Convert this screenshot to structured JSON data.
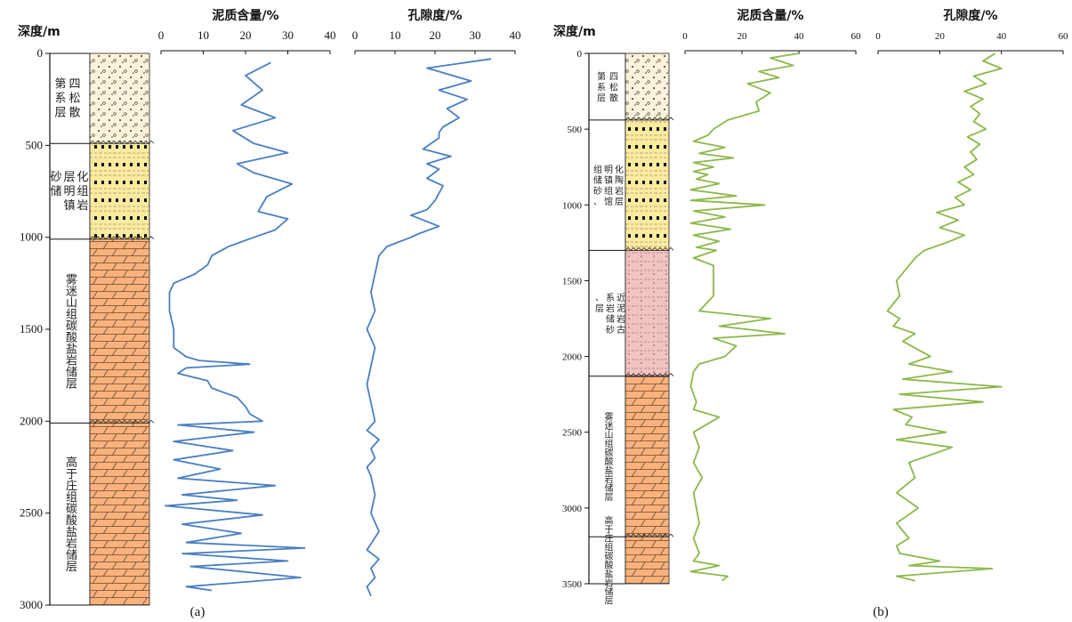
{
  "chart_data": [
    {
      "panel": "a",
      "type": "line",
      "caption": "(a)",
      "depth_axis": {
        "label": "深度/m",
        "ticks": [
          "0",
          "500",
          "1000",
          "1500",
          "2000",
          "2500",
          "3000"
        ],
        "range": [
          0,
          3000
        ]
      },
      "formations": [
        {
          "name": "第四系松散层",
          "label_lines": [
            "四",
            "松",
            "散",
            "第",
            "系",
            "层"
          ],
          "top": 0,
          "bottom": 490,
          "lithology": "sand-gravel",
          "color": "#fdf3db"
        },
        {
          "name": "明化镇组砂岩储层",
          "label_lines": [
            "化",
            "组",
            "岩",
            "层",
            "明",
            "镇",
            "砂",
            "储"
          ],
          "top": 490,
          "bottom": 1010,
          "lithology": "sandstone",
          "color": "#fcea9e"
        },
        {
          "name": "雾迷山组碳酸盐岩储层",
          "top": 1010,
          "bottom": 2010,
          "lithology": "carbonate",
          "color": "#f9b27d"
        },
        {
          "name": "高于庄组碳酸盐岩储层",
          "top": 2010,
          "bottom": 3000,
          "lithology": "carbonate",
          "color": "#f9b27d"
        }
      ],
      "series": [
        {
          "name": "泥质含量/%",
          "color": "#4a7fc1",
          "xlim": [
            0,
            40
          ],
          "xticks": [
            "0",
            "10",
            "20",
            "30",
            "40"
          ],
          "depth": [
            50,
            120,
            200,
            280,
            350,
            420,
            490,
            540,
            600,
            650,
            710,
            780,
            820,
            860,
            900,
            960,
            1000,
            1050,
            1100,
            1150,
            1200,
            1250,
            1300,
            1400,
            1500,
            1600,
            1650,
            1670,
            1690,
            1710,
            1740,
            1780,
            1820,
            1870,
            1920,
            1960,
            2000,
            2020,
            2060,
            2110,
            2160,
            2210,
            2260,
            2310,
            2350,
            2400,
            2430,
            2460,
            2510,
            2560,
            2610,
            2660,
            2690,
            2720,
            2760,
            2790,
            2850,
            2900,
            2920
          ],
          "values": [
            26,
            20,
            24,
            19,
            27,
            17,
            22,
            30,
            18,
            22,
            31,
            25,
            24,
            23,
            30,
            27,
            22,
            16,
            12,
            11,
            8,
            3,
            2,
            2,
            3,
            3,
            6,
            9,
            21,
            6,
            4,
            11,
            12,
            18,
            20,
            21,
            24,
            4,
            22,
            3,
            17,
            3,
            14,
            4,
            27,
            5,
            18,
            1,
            24,
            5,
            19,
            6,
            34,
            5,
            30,
            7,
            33,
            6,
            12
          ]
        },
        {
          "name": "孔隙度/%",
          "color": "#4a7fc1",
          "xlim": [
            0,
            40
          ],
          "xticks": [
            "0",
            "10",
            "20",
            "30",
            "40"
          ],
          "depth": [
            30,
            80,
            150,
            200,
            250,
            300,
            350,
            400,
            430,
            460,
            520,
            560,
            600,
            630,
            680,
            720,
            800,
            850,
            880,
            940,
            980,
            1000,
            1050,
            1100,
            1200,
            1300,
            1400,
            1500,
            1600,
            1700,
            1800,
            1900,
            2000,
            2050,
            2100,
            2150,
            2200,
            2250,
            2300,
            2400,
            2500,
            2600,
            2700,
            2750,
            2800,
            2850,
            2900,
            2950
          ],
          "values": [
            34,
            18,
            29,
            21,
            28,
            23,
            26,
            22,
            21,
            21,
            17,
            24,
            18,
            21,
            18,
            22,
            20,
            18,
            14,
            21,
            16,
            14,
            8,
            6,
            5,
            4,
            5,
            3,
            5,
            4,
            3,
            4,
            5,
            3,
            6,
            4,
            5,
            3,
            4,
            5,
            4,
            6,
            3,
            6,
            4,
            5,
            3,
            4
          ]
        }
      ]
    },
    {
      "panel": "b",
      "type": "line",
      "caption": "(b)",
      "depth_axis": {
        "label": "深度/m",
        "ticks": [
          "0",
          "500",
          "1000",
          "1500",
          "2000",
          "2500",
          "3000",
          "3500"
        ],
        "range": [
          0,
          3500
        ]
      },
      "formations": [
        {
          "name": "第四系松散层",
          "label_lines": [
            "四",
            "松",
            "散",
            "第",
            "系",
            "层"
          ],
          "top": 0,
          "bottom": 440,
          "lithology": "sand-gravel",
          "color": "#fdf3db"
        },
        {
          "name": "明化镇组、馆陶组砂岩储层",
          "label_lines": [
            "化",
            "陶",
            "岩",
            "层",
            "明",
            "镇",
            "组",
            "馆",
            "组",
            "储",
            "砂",
            "、"
          ],
          "top": 440,
          "bottom": 1300,
          "lithology": "sandstone",
          "color": "#fcea9e"
        },
        {
          "name": "古近系泥岩、砂岩储层",
          "label_lines": [
            "近",
            "泥",
            "岩",
            "古",
            "系",
            "岩",
            "储",
            "砂",
            "、",
            "层"
          ],
          "top": 1300,
          "bottom": 2130,
          "lithology": "mudstone-sandstone",
          "color": "#f2c3c3"
        },
        {
          "name": "雾迷山组碳酸盐岩储层",
          "top": 2130,
          "bottom": 3190,
          "lithology": "carbonate",
          "color": "#f9b27d"
        },
        {
          "name": "高于庄组碳酸盐岩储层",
          "top": 3190,
          "bottom": 3500,
          "lithology": "carbonate",
          "color": "#f9b27d"
        }
      ],
      "series": [
        {
          "name": "泥质含量/%",
          "color": "#8cb84a",
          "xlim": [
            0,
            60
          ],
          "xticks": [
            "0",
            "20",
            "40",
            "60"
          ],
          "depth": [
            0,
            30,
            80,
            120,
            160,
            200,
            260,
            320,
            380,
            440,
            500,
            540,
            580,
            620,
            660,
            690,
            720,
            750,
            780,
            800,
            830,
            860,
            900,
            940,
            970,
            1000,
            1040,
            1080,
            1120,
            1160,
            1200,
            1240,
            1280,
            1300,
            1350,
            1400,
            1480,
            1600,
            1700,
            1750,
            1800,
            1850,
            1880,
            1930,
            2000,
            2050,
            2100,
            2200,
            2300,
            2350,
            2400,
            2500,
            2600,
            2700,
            2800,
            2900,
            3000,
            3100,
            3200,
            3300,
            3350,
            3380,
            3420,
            3450,
            3480
          ],
          "values": [
            40,
            30,
            38,
            26,
            33,
            22,
            30,
            25,
            26,
            15,
            10,
            8,
            3,
            14,
            5,
            17,
            3,
            10,
            3,
            8,
            4,
            12,
            2,
            18,
            2,
            28,
            3,
            14,
            2,
            16,
            3,
            12,
            4,
            11,
            3,
            10,
            10,
            10,
            5,
            30,
            12,
            35,
            10,
            18,
            14,
            5,
            3,
            2,
            4,
            3,
            12,
            3,
            5,
            3,
            6,
            3,
            4,
            5,
            3,
            5,
            3,
            12,
            2,
            15,
            13
          ]
        },
        {
          "name": "孔隙度/%",
          "color": "#8cb84a",
          "xlim": [
            0,
            60
          ],
          "xticks": [
            "0",
            "20",
            "40",
            "60"
          ],
          "depth": [
            0,
            50,
            100,
            150,
            200,
            250,
            300,
            350,
            400,
            450,
            500,
            550,
            600,
            650,
            700,
            750,
            800,
            850,
            900,
            950,
            1000,
            1050,
            1100,
            1150,
            1200,
            1250,
            1300,
            1350,
            1400,
            1450,
            1500,
            1600,
            1700,
            1750,
            1800,
            1850,
            1900,
            2000,
            2050,
            2100,
            2150,
            2200,
            2250,
            2300,
            2350,
            2400,
            2450,
            2500,
            2550,
            2600,
            2700,
            2800,
            2900,
            3000,
            3100,
            3200,
            3250,
            3300,
            3350,
            3380,
            3400,
            3450,
            3480
          ],
          "values": [
            38,
            34,
            40,
            31,
            35,
            28,
            34,
            30,
            33,
            31,
            35,
            29,
            33,
            30,
            32,
            28,
            31,
            26,
            30,
            25,
            28,
            19,
            26,
            20,
            28,
            22,
            15,
            12,
            10,
            8,
            6,
            7,
            3,
            7,
            5,
            12,
            8,
            17,
            10,
            24,
            8,
            40,
            7,
            34,
            5,
            11,
            9,
            22,
            6,
            24,
            10,
            12,
            6,
            13,
            6,
            10,
            6,
            7,
            20,
            10,
            37,
            6,
            12
          ]
        }
      ]
    }
  ]
}
